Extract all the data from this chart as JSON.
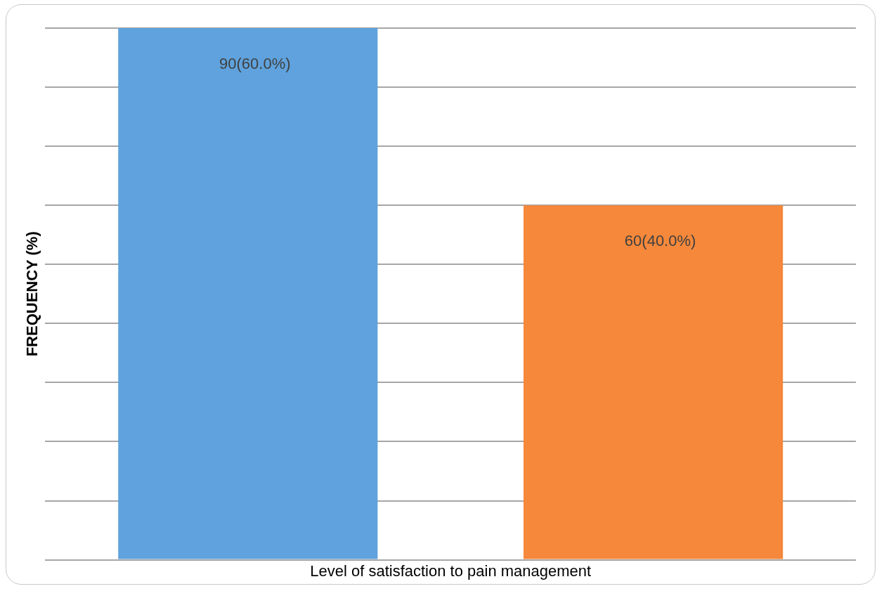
{
  "chart_data": {
    "type": "bar",
    "xlabel": "Level of satisfaction to pain management",
    "ylabel": "FREQUENCY (%)",
    "categories": [
      null,
      null
    ],
    "values": [
      90,
      60
    ],
    "colors": [
      "#5fa2dd",
      "#f5883a"
    ],
    "value_labels": [
      "90(60.0%)",
      "60(40.0%)"
    ],
    "ylim": [
      0,
      90
    ],
    "yticks": [
      {
        "value": 0,
        "label": null
      },
      {
        "value": 10,
        "label": null
      },
      {
        "value": 20,
        "label": null
      },
      {
        "value": 30,
        "label": null
      },
      {
        "value": 40,
        "label": null
      },
      {
        "value": 50,
        "label": null
      },
      {
        "value": 60,
        "label": null
      },
      {
        "value": 70,
        "label": null
      },
      {
        "value": 80,
        "label": null
      },
      {
        "value": 90,
        "label": null
      }
    ],
    "grid": "y",
    "tick_labels": false,
    "legend": false
  }
}
